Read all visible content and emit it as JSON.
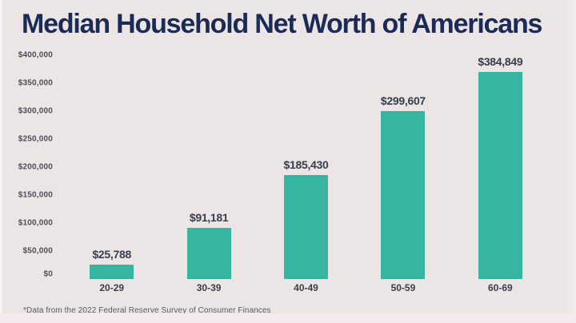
{
  "title": "Median Household Net Worth of Americans",
  "footnote": "*Data from the 2022 Federal Reserve Survey of Consumer Finances",
  "colors": {
    "background": "#EBE5E5",
    "bar": "#36B5A1",
    "title_text": "#1C2B55",
    "value_label_text": "#363D4D",
    "y_axis_label_text": "#4A4E59",
    "category_label_text": "#383E4B",
    "footnote_text": "#595A60"
  },
  "chart_data": {
    "type": "bar",
    "title": "Median Household Net Worth of Americans",
    "categories": [
      "20-29",
      "30-39",
      "40-49",
      "50-59",
      "60-69"
    ],
    "values": [
      25788,
      91181,
      185430,
      299607,
      384849
    ],
    "value_labels": [
      "$25,788",
      "$91,181",
      "$185,430",
      "$299,607",
      "$384,849"
    ],
    "ylim": [
      0,
      400000
    ],
    "yticks": [
      {
        "value": 0,
        "label": "$0"
      },
      {
        "value": 50000,
        "label": "$50,000"
      },
      {
        "value": 100000,
        "label": "$100,000"
      },
      {
        "value": 150000,
        "label": "$150,000"
      },
      {
        "value": 200000,
        "label": "$200,000"
      },
      {
        "value": 250000,
        "label": "$250,000"
      },
      {
        "value": 300000,
        "label": "$300,000"
      },
      {
        "value": 350000,
        "label": "$350,000"
      },
      {
        "value": 400000,
        "label": "$400,000"
      }
    ],
    "grid": false,
    "legend": false,
    "bar_color": "#36B5A1",
    "source_note": "*Data from the 2022 Federal Reserve Survey of Consumer Finances"
  }
}
